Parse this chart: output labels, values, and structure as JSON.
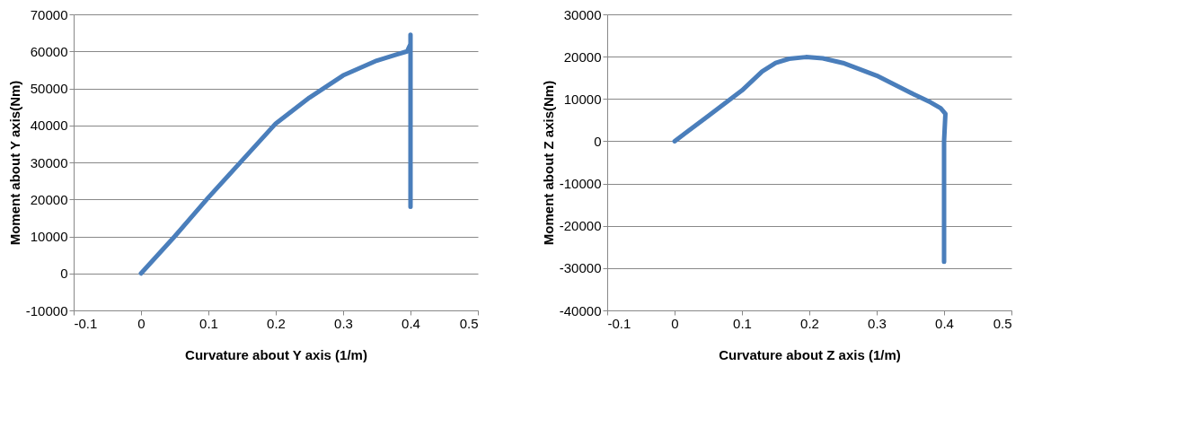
{
  "chart_data": [
    {
      "type": "line",
      "xlabel": "Curvature about Y axis (1/m)",
      "ylabel": "Moment about Y axis(Nm)",
      "xlim": [
        -0.1,
        0.5
      ],
      "xticks": [
        -0.1,
        0,
        0.1,
        0.2,
        0.3,
        0.4,
        0.5
      ],
      "ylim": [
        -10000,
        70000
      ],
      "yticks": [
        -10000,
        0,
        10000,
        20000,
        30000,
        40000,
        50000,
        60000,
        70000
      ],
      "grid": "y",
      "legend": false,
      "marker": "none",
      "line_style": "solid",
      "series": [
        {
          "color": "#4a7ebb",
          "x": [
            0,
            0.05,
            0.1,
            0.15,
            0.2,
            0.25,
            0.3,
            0.35,
            0.38,
            0.395,
            0.4,
            0.4,
            0.4,
            0.4
          ],
          "values": [
            0,
            10000,
            20500,
            30500,
            40500,
            47500,
            53500,
            57500,
            59200,
            60000,
            62000,
            64500,
            60000,
            18000
          ]
        }
      ]
    },
    {
      "type": "line",
      "xlabel": "Curvature about Z axis (1/m)",
      "ylabel": "Moment about Z axis(Nm)",
      "xlim": [
        -0.1,
        0.5
      ],
      "xticks": [
        -0.1,
        0,
        0.1,
        0.2,
        0.3,
        0.4,
        0.5
      ],
      "ylim": [
        -40000,
        30000
      ],
      "yticks": [
        -40000,
        -30000,
        -20000,
        -10000,
        0,
        10000,
        20000,
        30000
      ],
      "grid": "y",
      "legend": false,
      "marker": "none",
      "line_style": "solid",
      "series": [
        {
          "color": "#4a7ebb",
          "x": [
            0,
            0.05,
            0.1,
            0.13,
            0.15,
            0.17,
            0.195,
            0.22,
            0.25,
            0.3,
            0.35,
            0.38,
            0.395,
            0.402,
            0.4,
            0.4,
            0.4,
            0.4
          ],
          "values": [
            0,
            6000,
            12000,
            16500,
            18500,
            19500,
            19900,
            19600,
            18500,
            15500,
            11500,
            9200,
            7800,
            6500,
            0,
            -10000,
            -20000,
            -28500
          ]
        }
      ]
    }
  ]
}
